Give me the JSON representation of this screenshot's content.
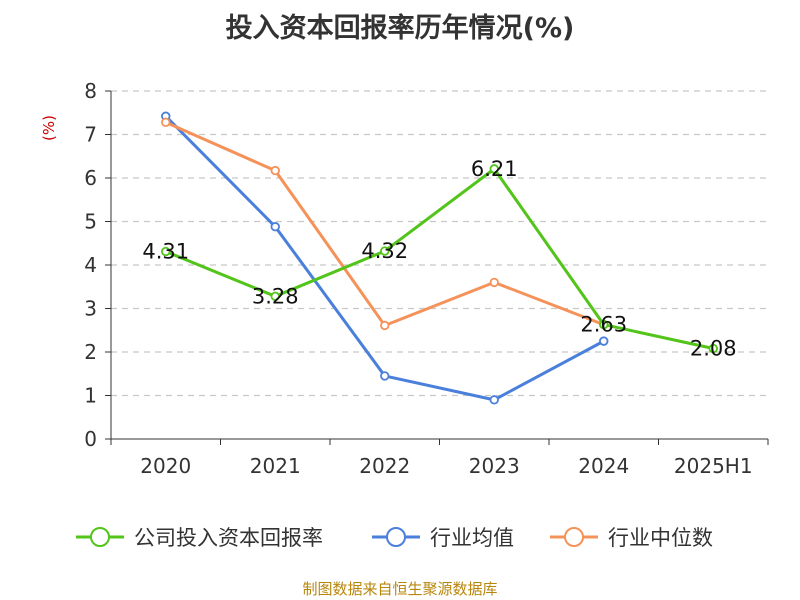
{
  "chart_data": {
    "type": "line",
    "title": "投入资本回报率历年情况(%)",
    "ylabel": "(%)",
    "categories": [
      "2020",
      "2021",
      "2022",
      "2023",
      "2024",
      "2025H1"
    ],
    "ylim": [
      0,
      8
    ],
    "yticks": [
      0,
      1,
      2,
      3,
      4,
      5,
      6,
      7,
      8
    ],
    "grid": "horizontal dashed",
    "legend_position": "bottom",
    "series": [
      {
        "name": "公司投入资本回报率",
        "values": [
          4.31,
          3.28,
          4.32,
          6.21,
          2.63,
          2.08
        ],
        "color": "#52c41a",
        "labels": [
          "4.31",
          "3.28",
          "4.32",
          "6.21",
          "2.63",
          "2.08"
        ]
      },
      {
        "name": "行业均值",
        "values": [
          7.42,
          4.88,
          1.45,
          0.9,
          2.25,
          null
        ],
        "color": "#4a7fdb"
      },
      {
        "name": "行业中位数",
        "values": [
          7.28,
          6.17,
          2.61,
          3.6,
          2.63,
          null
        ],
        "color": "#f5925a"
      }
    ]
  },
  "source": "制图数据来自恒生聚源数据库"
}
